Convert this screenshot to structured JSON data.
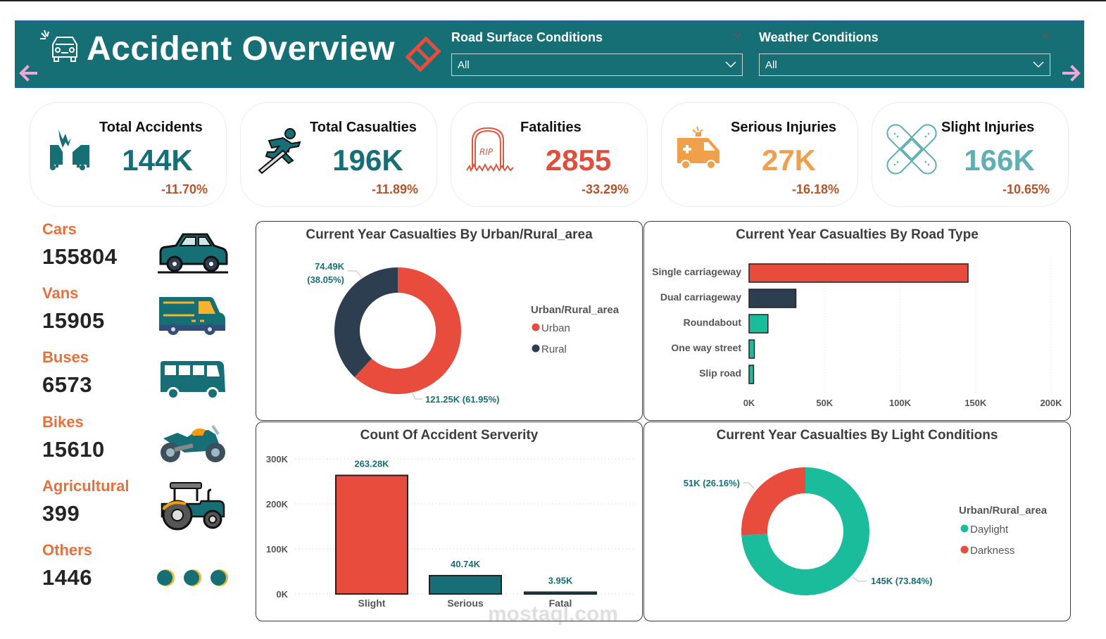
{
  "header": {
    "title": "Accident Overview",
    "icons": {
      "logo": "car-crash-icon",
      "clear": "eraser-icon",
      "prev": "arrow-left-icon",
      "next": "arrow-right-icon"
    },
    "slicers": [
      {
        "label": "Road Surface Conditions",
        "value": "All"
      },
      {
        "label": "Weather Conditions",
        "value": "All"
      }
    ]
  },
  "kpis": [
    {
      "label": "Total Accidents",
      "value": "144K",
      "delta": "-11.70%",
      "color": "#156f75",
      "icon": "car-collision-icon"
    },
    {
      "label": "Total Casualties",
      "value": "196K",
      "delta": "-11.89%",
      "color": "#156f75",
      "icon": "injured-runner-icon"
    },
    {
      "label": "Fatalities",
      "value": "2855",
      "delta": "-33.29%",
      "color": "#e04e3c",
      "icon": "gravestone-icon"
    },
    {
      "label": "Serious Injuries",
      "value": "27K",
      "delta": "-16.18%",
      "color": "#f0a04b",
      "icon": "ambulance-icon"
    },
    {
      "label": "Slight Injuries",
      "value": "166K",
      "delta": "-10.65%",
      "color": "#5fb0b4",
      "icon": "bandage-icon"
    }
  ],
  "vehicles": [
    {
      "label": "Cars",
      "value": "155804",
      "icon": "car-icon"
    },
    {
      "label": "Vans",
      "value": "15905",
      "icon": "van-icon"
    },
    {
      "label": "Buses",
      "value": "6573",
      "icon": "bus-icon"
    },
    {
      "label": "Bikes",
      "value": "15610",
      "icon": "motorbike-icon"
    },
    {
      "label": "Agricultural",
      "value": "399",
      "icon": "tractor-icon"
    },
    {
      "label": "Others",
      "value": "1446",
      "icon": "dots-icon"
    }
  ],
  "colors": {
    "teal": "#156f75",
    "red": "#e74c3c",
    "navy": "#2c3e50",
    "green": "#1abc9c",
    "orange": "#e8703a",
    "label_teal": "#156f75"
  },
  "watermark": "mostaql.com",
  "chart_data": [
    {
      "id": "urban_rural",
      "type": "pie",
      "donut": true,
      "title": "Current Year Casualties By Urban/Rural_area",
      "legend_title": "Urban/Rural_area",
      "legend_position": "right",
      "slices": [
        {
          "name": "Urban",
          "value": 121.25,
          "label": "121.25K (61.95%)",
          "percent": 61.95,
          "color": "#e74c3c"
        },
        {
          "name": "Rural",
          "value": 74.49,
          "label": "74.49K (38.05%)",
          "label_lines": [
            "74.49K",
            "(38.05%)"
          ],
          "percent": 38.05,
          "color": "#2c3e50"
        }
      ]
    },
    {
      "id": "road_type",
      "type": "bar",
      "orientation": "horizontal",
      "title": "Current Year Casualties By Road Type",
      "categories": [
        "Single carriageway",
        "Dual carriageway",
        "Roundabout",
        "One way street",
        "Slip road"
      ],
      "values": [
        145000,
        31000,
        12500,
        3500,
        3000
      ],
      "colors": [
        "#e74c3c",
        "#2c3e50",
        "#1abc9c",
        "#1abc9c",
        "#1abc9c"
      ],
      "xlim": [
        0,
        200000
      ],
      "xticks": [
        0,
        50000,
        100000,
        150000,
        200000
      ],
      "xtick_labels": [
        "0K",
        "50K",
        "100K",
        "150K",
        "200K"
      ],
      "grid": true
    },
    {
      "id": "severity",
      "type": "bar",
      "orientation": "vertical",
      "title": "Count Of Accident Serverity",
      "categories": [
        "Slight",
        "Serious",
        "Fatal"
      ],
      "values": [
        263280,
        40740,
        3950
      ],
      "data_labels": [
        "263.28K",
        "40.74K",
        "3.95K"
      ],
      "colors": [
        "#e74c3c",
        "#156f75",
        "#156f75"
      ],
      "ylim": [
        0,
        300000
      ],
      "yticks": [
        0,
        100000,
        200000,
        300000
      ],
      "ytick_labels": [
        "0K",
        "100K",
        "200K",
        "300K"
      ],
      "grid": true
    },
    {
      "id": "light_conditions",
      "type": "pie",
      "donut": true,
      "title": "Current Year Casualties By Light Conditions",
      "legend_title": "Urban/Rural_area",
      "legend_position": "right",
      "slices": [
        {
          "name": "Daylight",
          "value": 145,
          "label": "145K (73.84%)",
          "percent": 73.84,
          "color": "#1abc9c"
        },
        {
          "name": "Darkness",
          "value": 51,
          "label": "51K (26.16%)",
          "percent": 26.16,
          "color": "#e74c3c"
        }
      ]
    }
  ]
}
